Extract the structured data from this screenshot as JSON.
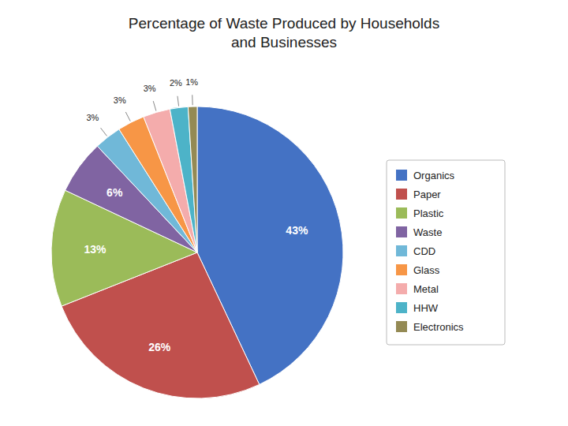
{
  "chart_data": {
    "type": "pie",
    "title": "Percentage of Waste Produced by Households\nand Businesses",
    "categories": [
      "Organics",
      "Paper",
      "Plastic",
      "Waste",
      "CDD",
      "Glass",
      "Metal",
      "HHW",
      "Electronics"
    ],
    "values": [
      43,
      26,
      13,
      6,
      3,
      3,
      3,
      2,
      1
    ],
    "value_labels": [
      "43%",
      "26%",
      "13%",
      "6%",
      "3%",
      "3%",
      "3%",
      "2%",
      "1%"
    ],
    "colors": [
      "#4472C4",
      "#C0504D",
      "#9BBB59",
      "#8064A2",
      "#70B8D8",
      "#F79646",
      "#F4ACAC",
      "#4DB3C8",
      "#948A54"
    ],
    "data_labels": true,
    "legend": "right"
  }
}
